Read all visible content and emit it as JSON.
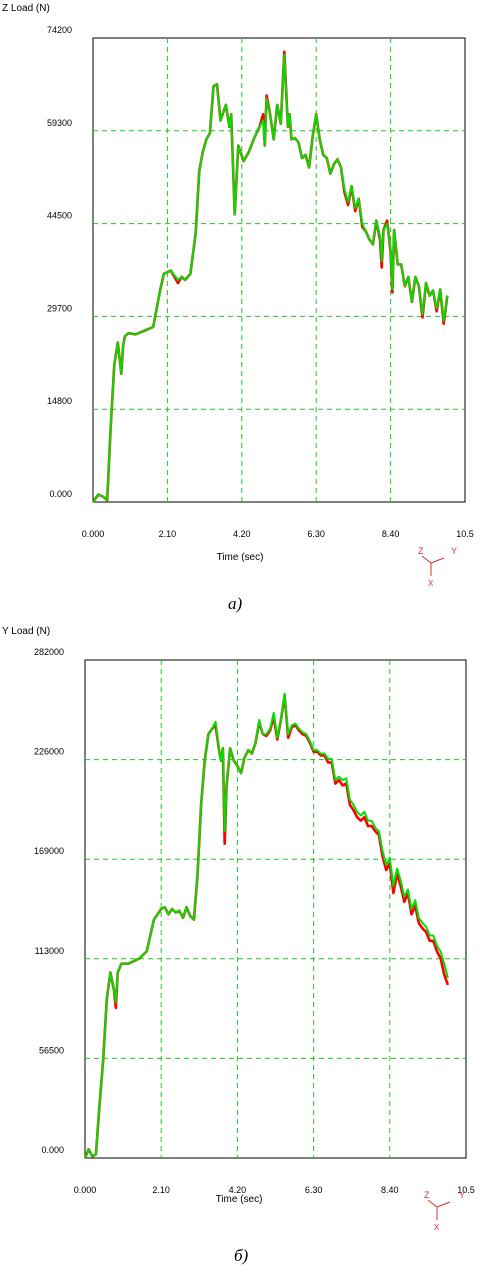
{
  "chart_data": [
    {
      "type": "line",
      "ylabel": "Z Load (N)",
      "xlabel": "Time (sec)",
      "xlim": [
        0,
        10.5
      ],
      "ylim": [
        0,
        74200
      ],
      "x_ticks": [
        "0.000",
        "2.10",
        "4.20",
        "6.30",
        "8.40",
        "10.5"
      ],
      "y_ticks": [
        "0.000",
        "14800",
        "29700",
        "44500",
        "59300",
        "74200"
      ],
      "grid": true,
      "axis_triad": {
        "z": "Z",
        "y": "Y",
        "x": "X"
      },
      "caption": "а)",
      "series": [
        {
          "color": "#ff0000",
          "x": [
            0,
            0.15,
            0.3,
            0.4,
            0.5,
            0.6,
            0.7,
            0.8,
            0.85,
            0.9,
            1.0,
            1.2,
            1.5,
            1.7,
            1.9,
            2.0,
            2.2,
            2.4,
            2.5,
            2.6,
            2.75,
            2.9,
            3.0,
            3.1,
            3.2,
            3.3,
            3.4,
            3.5,
            3.6,
            3.75,
            3.85,
            3.9,
            4.0,
            4.1,
            4.25,
            4.4,
            4.55,
            4.7,
            4.8,
            4.85,
            4.9,
            5.0,
            5.1,
            5.2,
            5.3,
            5.4,
            5.5,
            5.55,
            5.6,
            5.7,
            5.8,
            5.9,
            6.0,
            6.1,
            6.2,
            6.3,
            6.4,
            6.5,
            6.6,
            6.7,
            6.8,
            6.9,
            7.0,
            7.1,
            7.2,
            7.3,
            7.4,
            7.5,
            7.6,
            7.7,
            7.8,
            7.9,
            8.0,
            8.1,
            8.15,
            8.2,
            8.3,
            8.4,
            8.45,
            8.5,
            8.6,
            8.7,
            8.8,
            8.9,
            9.0,
            9.1,
            9.2,
            9.3,
            9.4,
            9.5,
            9.6,
            9.7,
            9.8,
            9.9,
            10.0
          ],
          "y": [
            0,
            1200,
            800,
            300,
            12000,
            22000,
            25500,
            20500,
            25000,
            26500,
            27000,
            26800,
            27500,
            28000,
            34000,
            36500,
            37000,
            35000,
            36000,
            35500,
            36500,
            43000,
            53000,
            56000,
            58000,
            59000,
            66500,
            66800,
            61000,
            63500,
            60000,
            62000,
            46000,
            57000,
            54500,
            56000,
            58200,
            60000,
            62000,
            57000,
            65000,
            62000,
            58000,
            63500,
            60500,
            72000,
            60000,
            62000,
            58000,
            58200,
            57500,
            55000,
            55500,
            53500,
            58500,
            62000,
            58000,
            55500,
            55000,
            52500,
            54000,
            54800,
            53500,
            49500,
            47500,
            50500,
            46500,
            48500,
            44000,
            43300,
            42000,
            41200,
            45000,
            42000,
            37500,
            43500,
            45000,
            40000,
            33500,
            43500,
            38000,
            38000,
            34500,
            36000,
            32000,
            36000,
            34500,
            29500,
            35000,
            33000,
            33800,
            30500,
            34000,
            28500,
            33000
          ]
        },
        {
          "color": "#00e000",
          "x": [
            0,
            0.15,
            0.3,
            0.4,
            0.5,
            0.6,
            0.7,
            0.8,
            0.85,
            0.9,
            1.0,
            1.2,
            1.5,
            1.7,
            1.9,
            2.0,
            2.2,
            2.4,
            2.5,
            2.6,
            2.75,
            2.9,
            3.0,
            3.1,
            3.2,
            3.3,
            3.4,
            3.5,
            3.6,
            3.75,
            3.85,
            3.9,
            4.0,
            4.1,
            4.25,
            4.4,
            4.55,
            4.7,
            4.8,
            4.85,
            4.9,
            5.0,
            5.1,
            5.2,
            5.3,
            5.4,
            5.5,
            5.55,
            5.6,
            5.7,
            5.8,
            5.9,
            6.0,
            6.1,
            6.2,
            6.3,
            6.4,
            6.5,
            6.6,
            6.7,
            6.8,
            6.9,
            7.0,
            7.1,
            7.2,
            7.3,
            7.4,
            7.5,
            7.6,
            7.7,
            7.8,
            7.9,
            8.0,
            8.1,
            8.15,
            8.2,
            8.3,
            8.4,
            8.45,
            8.5,
            8.6,
            8.7,
            8.8,
            8.9,
            9.0,
            9.1,
            9.2,
            9.3,
            9.4,
            9.5,
            9.6,
            9.7,
            9.8,
            9.9,
            10.0
          ],
          "y": [
            0,
            1200,
            800,
            300,
            12000,
            22000,
            25500,
            20500,
            25000,
            26500,
            27000,
            26800,
            27500,
            28000,
            34000,
            36500,
            37000,
            35500,
            36000,
            35500,
            36500,
            43000,
            53000,
            56000,
            58000,
            59000,
            66500,
            66800,
            61000,
            63500,
            60000,
            62000,
            46000,
            57000,
            54500,
            56000,
            58200,
            60000,
            61000,
            57000,
            64500,
            62000,
            58000,
            63500,
            60500,
            71500,
            60000,
            62000,
            58000,
            58200,
            57500,
            55000,
            55500,
            53500,
            58500,
            62000,
            58000,
            55500,
            55000,
            52500,
            54000,
            54800,
            53500,
            50000,
            48000,
            50500,
            47000,
            48500,
            44500,
            43300,
            42000,
            41200,
            45000,
            42500,
            38500,
            43500,
            44500,
            40500,
            34000,
            43500,
            38000,
            38000,
            34500,
            36000,
            32000,
            36000,
            34500,
            30000,
            35000,
            33000,
            33800,
            31000,
            34000,
            29000,
            33000
          ]
        }
      ]
    },
    {
      "type": "line",
      "ylabel": "Y Load (N)",
      "xlabel": "Time (sec)",
      "xlim": [
        0,
        10.5
      ],
      "ylim": [
        0,
        282000
      ],
      "x_ticks": [
        "0.000",
        "2.10",
        "4.20",
        "6.30",
        "8.40",
        "10.5"
      ],
      "y_ticks": [
        "0.000",
        "56500",
        "113000",
        "169000",
        "226000",
        "282000"
      ],
      "grid": true,
      "axis_triad": {
        "z": "Z",
        "y": "Y",
        "x": "X"
      },
      "caption": "б)",
      "series": [
        {
          "color": "#ff0000",
          "x": [
            0,
            0.1,
            0.2,
            0.3,
            0.4,
            0.5,
            0.6,
            0.7,
            0.8,
            0.85,
            0.9,
            1.0,
            1.2,
            1.5,
            1.7,
            1.9,
            2.0,
            2.1,
            2.2,
            2.3,
            2.4,
            2.5,
            2.6,
            2.7,
            2.8,
            2.9,
            3.0,
            3.1,
            3.2,
            3.3,
            3.4,
            3.5,
            3.6,
            3.7,
            3.75,
            3.8,
            3.85,
            3.9,
            4.0,
            4.1,
            4.2,
            4.3,
            4.4,
            4.5,
            4.6,
            4.7,
            4.8,
            4.9,
            5.0,
            5.1,
            5.2,
            5.3,
            5.4,
            5.5,
            5.6,
            5.7,
            5.8,
            5.9,
            6.0,
            6.1,
            6.2,
            6.3,
            6.4,
            6.5,
            6.6,
            6.7,
            6.8,
            6.9,
            7.0,
            7.1,
            7.2,
            7.3,
            7.4,
            7.5,
            7.6,
            7.7,
            7.8,
            7.9,
            8.0,
            8.1,
            8.2,
            8.3,
            8.4,
            8.5,
            8.6,
            8.7,
            8.8,
            8.9,
            9.0,
            9.1,
            9.2,
            9.3,
            9.4,
            9.5,
            9.6,
            9.7,
            9.8,
            9.9,
            10.0
          ],
          "y": [
            0,
            5000,
            1000,
            2000,
            30000,
            55000,
            90000,
            105000,
            95000,
            85000,
            105000,
            110000,
            110000,
            113000,
            117000,
            135000,
            138000,
            141000,
            142000,
            138000,
            141000,
            139000,
            140000,
            136000,
            142000,
            137000,
            135000,
            160000,
            200000,
            225000,
            240000,
            243000,
            245000,
            230000,
            225000,
            232000,
            178000,
            210000,
            232000,
            225000,
            222000,
            218000,
            227000,
            231000,
            229000,
            235000,
            247000,
            240000,
            239000,
            242000,
            250000,
            237000,
            248000,
            262000,
            238000,
            244000,
            245000,
            242000,
            240000,
            239000,
            235000,
            230000,
            230000,
            228000,
            228000,
            224000,
            224000,
            212000,
            214000,
            211000,
            212000,
            200000,
            197000,
            193000,
            191000,
            193000,
            188000,
            188000,
            185000,
            183000,
            171000,
            163000,
            167000,
            150000,
            161000,
            154000,
            145000,
            150000,
            138000,
            143000,
            133000,
            130000,
            128000,
            123000,
            123000,
            117000,
            113000,
            104000,
            98000
          ]
        },
        {
          "color": "#00e000",
          "x": [
            0,
            0.1,
            0.2,
            0.3,
            0.4,
            0.5,
            0.6,
            0.7,
            0.8,
            0.85,
            0.9,
            1.0,
            1.2,
            1.5,
            1.7,
            1.9,
            2.0,
            2.1,
            2.2,
            2.3,
            2.4,
            2.5,
            2.6,
            2.7,
            2.8,
            2.9,
            3.0,
            3.1,
            3.2,
            3.3,
            3.4,
            3.5,
            3.6,
            3.7,
            3.75,
            3.8,
            3.85,
            3.9,
            4.0,
            4.1,
            4.2,
            4.3,
            4.4,
            4.5,
            4.6,
            4.7,
            4.8,
            4.9,
            5.0,
            5.1,
            5.2,
            5.3,
            5.4,
            5.5,
            5.6,
            5.7,
            5.8,
            5.9,
            6.0,
            6.1,
            6.2,
            6.3,
            6.4,
            6.5,
            6.6,
            6.7,
            6.8,
            6.9,
            7.0,
            7.1,
            7.2,
            7.3,
            7.4,
            7.5,
            7.6,
            7.7,
            7.8,
            7.9,
            8.0,
            8.1,
            8.2,
            8.3,
            8.4,
            8.5,
            8.6,
            8.7,
            8.8,
            8.9,
            9.0,
            9.1,
            9.2,
            9.3,
            9.4,
            9.5,
            9.6,
            9.7,
            9.8,
            9.9,
            10.0
          ],
          "y": [
            0,
            5000,
            1000,
            2000,
            30000,
            55000,
            90000,
            105000,
            95000,
            88000,
            105000,
            110000,
            110000,
            113000,
            117000,
            135000,
            138000,
            141000,
            142000,
            138000,
            141000,
            139000,
            140000,
            136000,
            142000,
            137000,
            135000,
            160000,
            200000,
            225000,
            240000,
            243000,
            247000,
            230000,
            225000,
            232000,
            185000,
            210000,
            232000,
            225000,
            222000,
            218000,
            227000,
            231000,
            229000,
            235000,
            248000,
            240000,
            240000,
            243000,
            252000,
            238000,
            248000,
            263000,
            240000,
            245000,
            246000,
            243000,
            241000,
            240000,
            236000,
            231000,
            231000,
            229000,
            229000,
            226000,
            226000,
            214000,
            216000,
            214000,
            215000,
            203000,
            200000,
            196000,
            194000,
            196000,
            191000,
            191000,
            187000,
            185000,
            174000,
            166000,
            170000,
            154000,
            164000,
            157000,
            148000,
            152000,
            141000,
            146000,
            136000,
            133000,
            131000,
            126000,
            126000,
            120000,
            117000,
            110000,
            102000
          ]
        }
      ]
    }
  ]
}
